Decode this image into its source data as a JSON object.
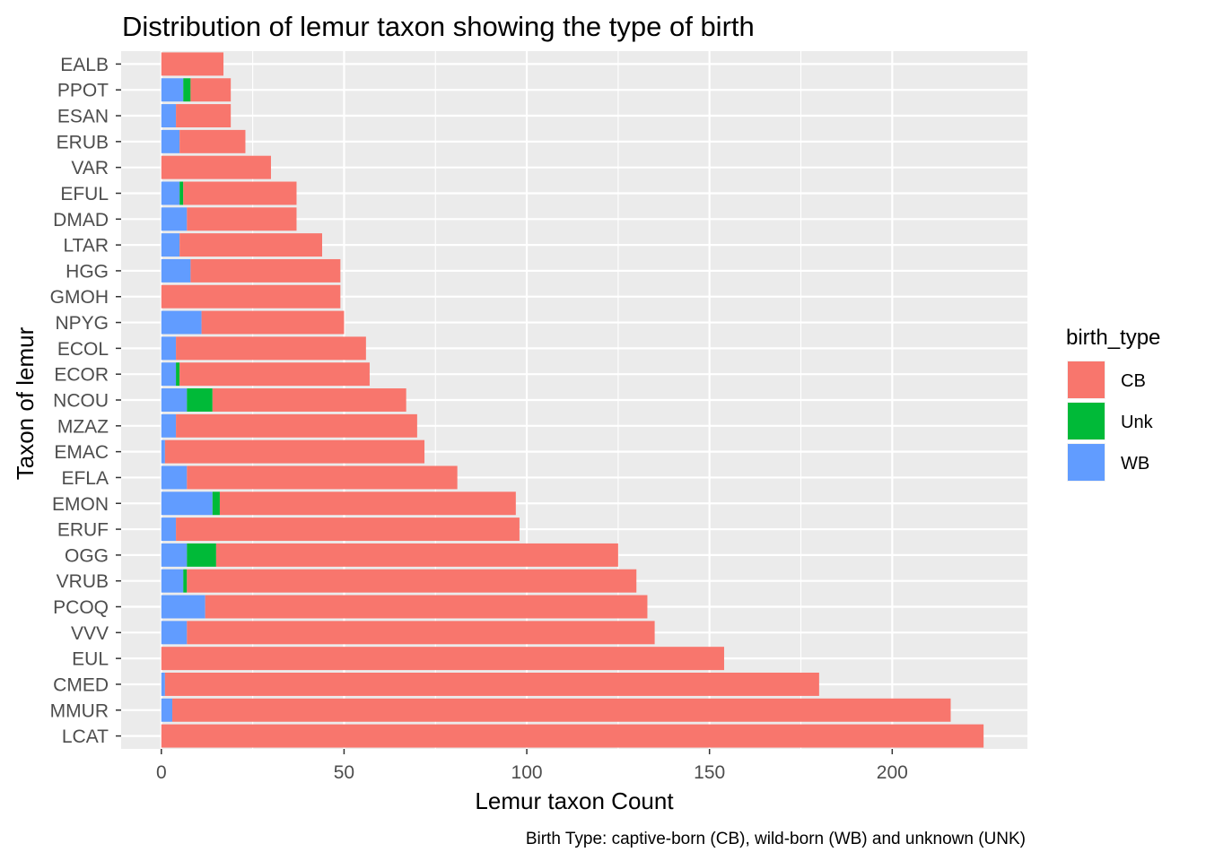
{
  "chart_data": {
    "type": "bar",
    "orientation": "horizontal",
    "stacked": true,
    "title": "Distribution of lemur taxon showing the type of birth",
    "xlabel": "Lemur taxon Count",
    "ylabel": "Taxon of lemur",
    "caption": "Birth Type: captive-born (CB), wild-born (WB) and unknown (UNK)",
    "xlim": [
      -11,
      237
    ],
    "xticks": [
      0,
      50,
      100,
      150,
      200
    ],
    "grid": true,
    "legend": {
      "title": "birth_type",
      "position": "right",
      "entries": [
        {
          "label": "CB",
          "color": "#F8766D"
        },
        {
          "label": "Unk",
          "color": "#00BA38"
        },
        {
          "label": "WB",
          "color": "#619CFF"
        }
      ]
    },
    "stack_order": [
      "WB",
      "Unk",
      "CB"
    ],
    "categories": [
      "EALB",
      "PPOT",
      "ESAN",
      "ERUB",
      "VAR",
      "EFUL",
      "DMAD",
      "LTAR",
      "HGG",
      "GMOH",
      "NPYG",
      "ECOL",
      "ECOR",
      "NCOU",
      "MZAZ",
      "EMAC",
      "EFLA",
      "EMON",
      "ERUF",
      "OGG",
      "VRUB",
      "PCOQ",
      "VVV",
      "EUL",
      "CMED",
      "MMUR",
      "LCAT"
    ],
    "series": [
      {
        "name": "CB",
        "color": "#F8766D",
        "values": [
          17,
          11,
          15,
          18,
          30,
          31,
          30,
          39,
          41,
          49,
          39,
          52,
          52,
          53,
          66,
          71,
          74,
          81,
          94,
          110,
          123,
          121,
          128,
          154,
          179,
          213,
          225
        ]
      },
      {
        "name": "Unk",
        "color": "#00BA38",
        "values": [
          0,
          2,
          0,
          0,
          0,
          1,
          0,
          0,
          0,
          0,
          0,
          0,
          1,
          7,
          0,
          0,
          0,
          2,
          0,
          8,
          1,
          0,
          0,
          0,
          0,
          0,
          0
        ]
      },
      {
        "name": "WB",
        "color": "#619CFF",
        "values": [
          0,
          6,
          4,
          5,
          0,
          5,
          7,
          5,
          8,
          0,
          11,
          4,
          4,
          7,
          4,
          1,
          7,
          14,
          4,
          7,
          6,
          12,
          7,
          0,
          1,
          3,
          0
        ]
      }
    ]
  }
}
